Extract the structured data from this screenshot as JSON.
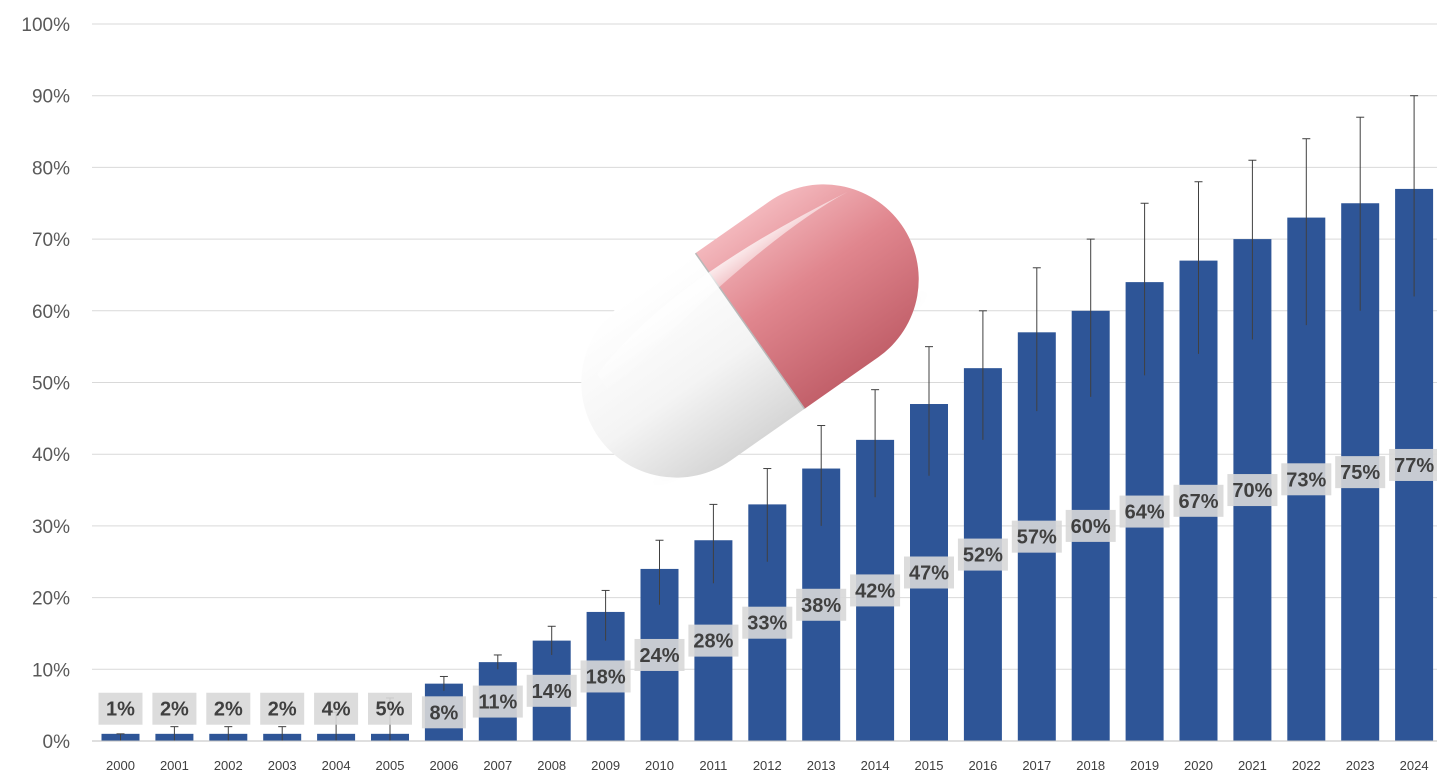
{
  "chart_data": {
    "type": "bar",
    "title": "",
    "xlabel": "",
    "ylabel": "",
    "ylim": [
      0,
      100
    ],
    "ytick_values": [
      0,
      10,
      20,
      30,
      40,
      50,
      60,
      70,
      80,
      90,
      100
    ],
    "ytick_labels": [
      "0%",
      "10%",
      "20%",
      "30%",
      "40%",
      "50%",
      "60%",
      "70%",
      "80%",
      "90%",
      "100%"
    ],
    "grid": true,
    "legend": "none",
    "categories": [
      "2000",
      "2001",
      "2002",
      "2003",
      "2004",
      "2005",
      "2006",
      "2007",
      "2008",
      "2009",
      "2010",
      "2011",
      "2012",
      "2013",
      "2014",
      "2015",
      "2016",
      "2017",
      "2018",
      "2019",
      "2020",
      "2021",
      "2022",
      "2023",
      "2024"
    ],
    "values": [
      1,
      2,
      2,
      2,
      4,
      5,
      8,
      11,
      14,
      18,
      24,
      28,
      33,
      38,
      42,
      47,
      52,
      57,
      60,
      64,
      67,
      70,
      73,
      75,
      77
    ],
    "bar_heights_drawn": [
      1,
      1,
      1,
      1,
      1,
      1,
      8,
      11,
      14,
      18,
      24,
      28,
      33,
      38,
      42,
      47,
      52,
      57,
      60,
      64,
      67,
      70,
      73,
      75,
      77
    ],
    "data_labels": [
      "1%",
      "2%",
      "2%",
      "2%",
      "4%",
      "5%",
      "8%",
      "11%",
      "14%",
      "18%",
      "24%",
      "28%",
      "33%",
      "38%",
      "42%",
      "47%",
      "52%",
      "57%",
      "60%",
      "64%",
      "67%",
      "70%",
      "73%",
      "75%",
      "77%"
    ],
    "data_label_positions": [
      4.5,
      4.5,
      4.5,
      4.5,
      4.5,
      4.5,
      4,
      5.5,
      7,
      9,
      12,
      14,
      16.5,
      19,
      21,
      23.5,
      26,
      28.5,
      30,
      32,
      33.5,
      35,
      36.5,
      37.5,
      38.5
    ],
    "error_low": [
      0,
      0,
      0,
      0,
      0,
      0,
      7,
      10,
      12,
      14,
      19,
      22,
      25,
      30,
      34,
      37,
      42,
      46,
      48,
      51,
      54,
      56,
      58,
      60,
      62
    ],
    "error_high": [
      1,
      2,
      2,
      2,
      4,
      6,
      9,
      12,
      16,
      21,
      28,
      33,
      38,
      44,
      49,
      55,
      60,
      66,
      70,
      75,
      78,
      81,
      84,
      87,
      90
    ],
    "colors": {
      "bar": "#2e5597",
      "grid": "#d9d9d9",
      "label_bg": "#d8d8d8",
      "label_text": "#404040",
      "error_bar": "#404040",
      "capsule_red": "#d4737c",
      "capsule_white": "#f2f2f2"
    },
    "decoration": "pill-capsule-image"
  }
}
